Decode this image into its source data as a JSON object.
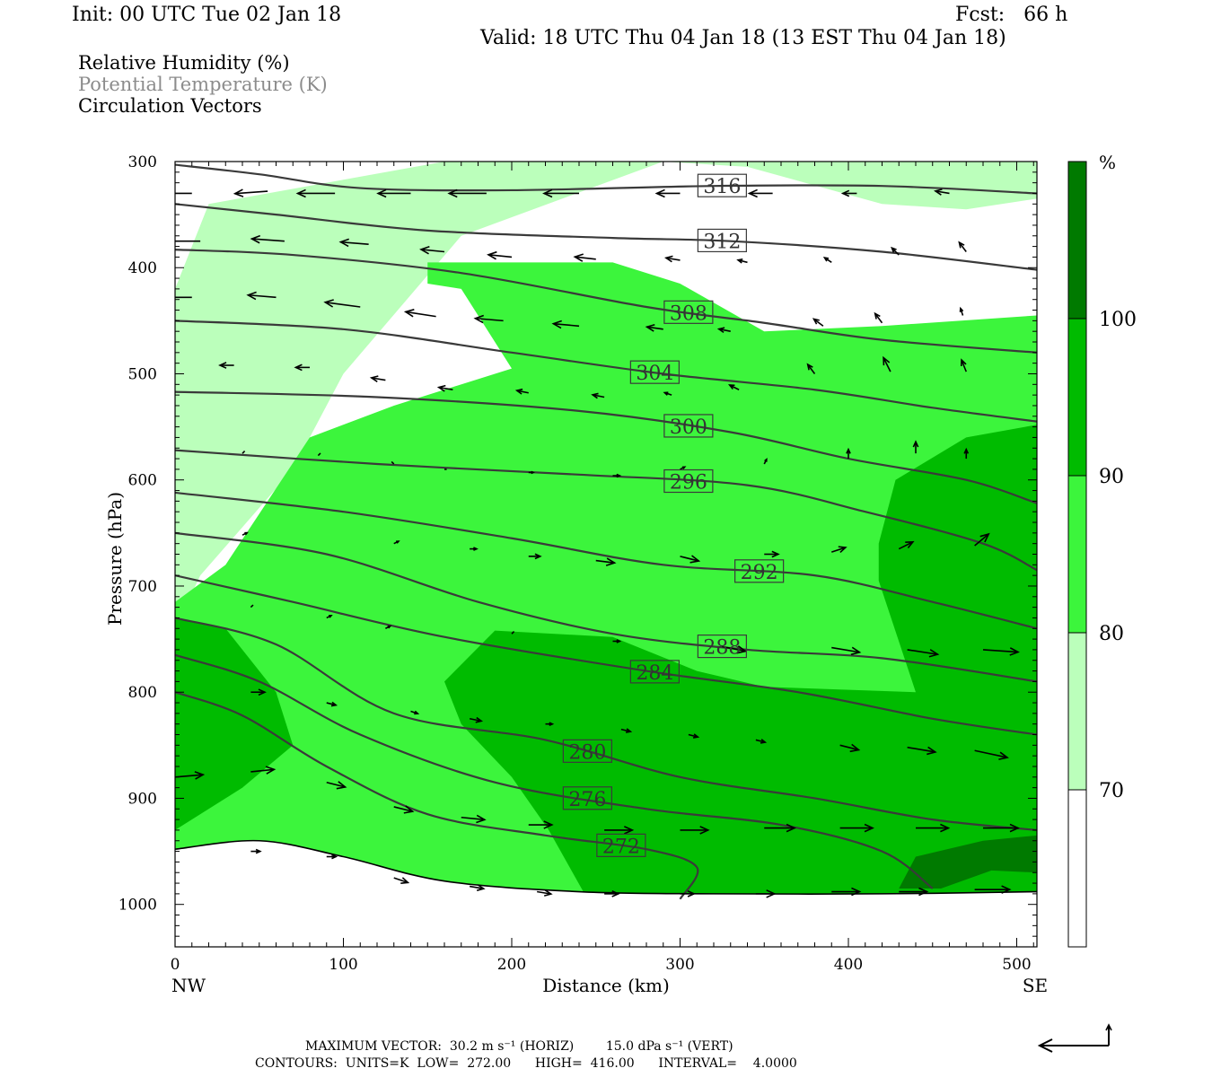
{
  "header": {
    "init": "Init: 00 UTC Tue 02 Jan 18",
    "fcst": "Fcst:   66 h",
    "valid": "Valid: 18 UTC Thu 04 Jan 18 (13 EST Thu 04 Jan 18)"
  },
  "legend": {
    "rh": "Relative Humidity (%)",
    "theta": "Potential Temperature (K)",
    "vectors": "Circulation Vectors"
  },
  "colors": {
    "rh_70_80": "#bbffbb",
    "rh_80_90": "#3cf53c",
    "rh_90_100": "#00bb00",
    "rh_100_plus": "#007a00",
    "theta_line": "#3a3a3a",
    "theta_label_text": "#333333"
  },
  "footer": {
    "line1": "MAXIMUM VECTOR:  30.2 m s⁻¹ (HORIZ)        15.0 dPa s⁻¹ (VERT)",
    "line2": "CONTOURS:  UNITS=K  LOW=  272.00      HIGH=  416.00      INTERVAL=    4.0000"
  },
  "chart_data": {
    "type": "cross-section",
    "xlabel": "Distance (km)",
    "ylabel": "Pressure (hPa)",
    "xlim": [
      0,
      512
    ],
    "ylim": [
      1040,
      300
    ],
    "x_ticks": [
      0,
      100,
      200,
      300,
      400,
      500
    ],
    "y_ticks": [
      300,
      400,
      500,
      600,
      700,
      800,
      900,
      1000
    ],
    "endpoint_left": "NW",
    "endpoint_right": "SE",
    "colorbar": {
      "unit": "%",
      "levels": [
        70,
        80,
        90,
        100
      ],
      "labels": [
        "70",
        "80",
        "90",
        "100"
      ],
      "colors": [
        "#ffffff",
        "#bbffbb",
        "#3cf53c",
        "#00bb00",
        "#007a00"
      ]
    },
    "rh_regions": [
      {
        "level": 70,
        "points": [
          [
            0,
            740
          ],
          [
            0,
            420
          ],
          [
            20,
            340
          ],
          [
            160,
            300
          ],
          [
            512,
            300
          ],
          [
            512,
            335
          ],
          [
            470,
            345
          ],
          [
            420,
            340
          ],
          [
            340,
            305
          ],
          [
            290,
            300
          ],
          [
            170,
            370
          ],
          [
            100,
            500
          ],
          [
            70,
            590
          ],
          [
            15,
            690
          ]
        ]
      },
      {
        "level": 80,
        "points": [
          [
            0,
            960
          ],
          [
            0,
            715
          ],
          [
            30,
            680
          ],
          [
            80,
            560
          ],
          [
            130,
            530
          ],
          [
            200,
            495
          ],
          [
            170,
            420
          ],
          [
            150,
            415
          ],
          [
            150,
            395
          ],
          [
            260,
            395
          ],
          [
            300,
            415
          ],
          [
            350,
            460
          ],
          [
            420,
            455
          ],
          [
            512,
            445
          ],
          [
            512,
            1010
          ],
          [
            400,
            1000
          ],
          [
            250,
            995
          ],
          [
            150,
            995
          ],
          [
            90,
            960
          ],
          [
            40,
            940
          ]
        ]
      },
      {
        "level": 90,
        "points": [
          [
            0,
            930
          ],
          [
            0,
            730
          ],
          [
            30,
            740
          ],
          [
            60,
            800
          ],
          [
            70,
            850
          ],
          [
            40,
            890
          ]
        ]
      },
      {
        "level": 90,
        "points": [
          [
            160,
            790
          ],
          [
            190,
            742
          ],
          [
            260,
            748
          ],
          [
            310,
            780
          ],
          [
            350,
            795
          ],
          [
            440,
            800
          ],
          [
            418,
            695
          ],
          [
            418,
            660
          ],
          [
            428,
            600
          ],
          [
            470,
            560
          ],
          [
            512,
            548
          ],
          [
            512,
            990
          ],
          [
            440,
            1000
          ],
          [
            350,
            995
          ],
          [
            245,
            995
          ],
          [
            222,
            930
          ],
          [
            200,
            880
          ],
          [
            170,
            830
          ]
        ]
      },
      {
        "level": 100,
        "points": [
          [
            430,
            985
          ],
          [
            440,
            955
          ],
          [
            480,
            940
          ],
          [
            512,
            935
          ],
          [
            512,
            970
          ],
          [
            485,
            968
          ],
          [
            455,
            985
          ]
        ]
      }
    ],
    "theta_contours": [
      {
        "label": "316",
        "points": [
          [
            0,
            303
          ],
          [
            50,
            312
          ],
          [
            110,
            325
          ],
          [
            200,
            327
          ],
          [
            320,
            323
          ],
          [
            420,
            323
          ],
          [
            512,
            330
          ]
        ]
      },
      {
        "label": "312",
        "points": [
          [
            0,
            340
          ],
          [
            60,
            350
          ],
          [
            150,
            365
          ],
          [
            260,
            372
          ],
          [
            330,
            375
          ],
          [
            420,
            385
          ],
          [
            512,
            402
          ]
        ]
      },
      {
        "label": "308",
        "points": [
          [
            0,
            383
          ],
          [
            70,
            388
          ],
          [
            170,
            405
          ],
          [
            280,
            437
          ],
          [
            350,
            452
          ],
          [
            420,
            468
          ],
          [
            512,
            480
          ]
        ]
      },
      {
        "label": "304",
        "points": [
          [
            0,
            450
          ],
          [
            100,
            458
          ],
          [
            200,
            480
          ],
          [
            290,
            500
          ],
          [
            380,
            515
          ],
          [
            450,
            532
          ],
          [
            512,
            545
          ]
        ]
      },
      {
        "label": "300",
        "points": [
          [
            0,
            517
          ],
          [
            120,
            522
          ],
          [
            240,
            535
          ],
          [
            330,
            555
          ],
          [
            400,
            580
          ],
          [
            470,
            600
          ],
          [
            512,
            622
          ]
        ]
      },
      {
        "label": "296",
        "points": [
          [
            0,
            572
          ],
          [
            120,
            585
          ],
          [
            240,
            595
          ],
          [
            340,
            605
          ],
          [
            410,
            630
          ],
          [
            480,
            660
          ],
          [
            512,
            685
          ]
        ]
      },
      {
        "label": "292",
        "points": [
          [
            0,
            612
          ],
          [
            100,
            630
          ],
          [
            200,
            655
          ],
          [
            290,
            680
          ],
          [
            380,
            690
          ],
          [
            450,
            715
          ],
          [
            512,
            740
          ]
        ]
      },
      {
        "label": "288",
        "points": [
          [
            0,
            650
          ],
          [
            90,
            670
          ],
          [
            180,
            715
          ],
          [
            260,
            745
          ],
          [
            340,
            760
          ],
          [
            420,
            768
          ],
          [
            512,
            790
          ]
        ]
      },
      {
        "label": "284",
        "points": [
          [
            0,
            690
          ],
          [
            70,
            715
          ],
          [
            160,
            748
          ],
          [
            280,
            780
          ],
          [
            370,
            800
          ],
          [
            450,
            825
          ],
          [
            512,
            840
          ]
        ]
      },
      {
        "label": "280",
        "points": [
          [
            0,
            730
          ],
          [
            60,
            755
          ],
          [
            130,
            820
          ],
          [
            220,
            845
          ],
          [
            300,
            880
          ],
          [
            380,
            900
          ],
          [
            450,
            920
          ],
          [
            512,
            930
          ]
        ]
      },
      {
        "label": "276",
        "points": [
          [
            0,
            765
          ],
          [
            50,
            790
          ],
          [
            110,
            840
          ],
          [
            190,
            885
          ],
          [
            280,
            910
          ],
          [
            360,
            925
          ],
          [
            420,
            950
          ],
          [
            450,
            985
          ]
        ]
      },
      {
        "label": "272",
        "points": [
          [
            0,
            800
          ],
          [
            40,
            822
          ],
          [
            90,
            870
          ],
          [
            150,
            915
          ],
          [
            220,
            935
          ],
          [
            280,
            948
          ],
          [
            310,
            965
          ],
          [
            300,
            995
          ]
        ]
      },
      {
        "label": "",
        "points": [
          [
            0,
            948
          ],
          [
            50,
            940
          ],
          [
            100,
            955
          ],
          [
            160,
            978
          ],
          [
            240,
            988
          ],
          [
            320,
            990
          ],
          [
            420,
            990
          ],
          [
            512,
            988
          ]
        ]
      }
    ],
    "wind_vectors": [
      [
        10,
        330,
        -15,
        0
      ],
      [
        55,
        328,
        -14,
        1
      ],
      [
        95,
        330,
        -16,
        0
      ],
      [
        140,
        330,
        -14,
        0
      ],
      [
        185,
        330,
        -16,
        0
      ],
      [
        240,
        330,
        -15,
        0
      ],
      [
        300,
        330,
        -10,
        0
      ],
      [
        355,
        330,
        -10,
        0
      ],
      [
        405,
        330,
        -6,
        0
      ],
      [
        460,
        330,
        -6,
        -1
      ],
      [
        15,
        375,
        -16,
        0
      ],
      [
        65,
        375,
        -14,
        -1
      ],
      [
        115,
        378,
        -12,
        -1
      ],
      [
        160,
        385,
        -10,
        -1
      ],
      [
        200,
        390,
        -10,
        -1
      ],
      [
        250,
        392,
        -9,
        -1
      ],
      [
        300,
        393,
        -6,
        -1
      ],
      [
        340,
        395,
        -4,
        -1
      ],
      [
        390,
        395,
        -3,
        -2
      ],
      [
        430,
        388,
        -3,
        -3
      ],
      [
        470,
        385,
        -3,
        -4
      ],
      [
        10,
        428,
        -14,
        0
      ],
      [
        60,
        428,
        -12,
        -1
      ],
      [
        110,
        437,
        -15,
        -2
      ],
      [
        155,
        446,
        -13,
        -2
      ],
      [
        195,
        450,
        -12,
        -1
      ],
      [
        240,
        455,
        -11,
        -1
      ],
      [
        290,
        458,
        -7,
        -1
      ],
      [
        330,
        460,
        -5,
        -1
      ],
      [
        385,
        455,
        -4,
        -3
      ],
      [
        420,
        452,
        -3,
        -4
      ],
      [
        468,
        445,
        -1,
        -3
      ],
      [
        35,
        492,
        -6,
        0
      ],
      [
        80,
        494,
        -6,
        0
      ],
      [
        125,
        506,
        -6,
        -1
      ],
      [
        165,
        515,
        -6,
        -1
      ],
      [
        210,
        518,
        -5,
        -1
      ],
      [
        255,
        522,
        -5,
        -1
      ],
      [
        295,
        520,
        -3,
        -1
      ],
      [
        335,
        515,
        -4,
        -2
      ],
      [
        380,
        500,
        -3,
        -4
      ],
      [
        425,
        498,
        -3,
        -6
      ],
      [
        470,
        498,
        -2,
        -5
      ],
      [
        40,
        575,
        1,
        -1
      ],
      [
        85,
        577,
        1,
        -1
      ],
      [
        130,
        585,
        -1,
        -1
      ],
      [
        160,
        590,
        1,
        0
      ],
      [
        210,
        593,
        2,
        0
      ],
      [
        260,
        596,
        3,
        0
      ],
      [
        300,
        590,
        2,
        -1
      ],
      [
        350,
        585,
        1,
        -2
      ],
      [
        400,
        580,
        0,
        -4
      ],
      [
        440,
        575,
        0,
        -5
      ],
      [
        470,
        580,
        0,
        -4
      ],
      [
        40,
        652,
        2,
        -1
      ],
      [
        130,
        660,
        2,
        -1
      ],
      [
        175,
        665,
        3,
        0
      ],
      [
        210,
        672,
        5,
        0
      ],
      [
        250,
        676,
        8,
        1
      ],
      [
        300,
        672,
        8,
        2
      ],
      [
        350,
        670,
        6,
        0
      ],
      [
        390,
        668,
        6,
        -2
      ],
      [
        430,
        665,
        6,
        -3
      ],
      [
        475,
        662,
        6,
        -5
      ],
      [
        45,
        720,
        1,
        -1
      ],
      [
        90,
        730,
        2,
        -1
      ],
      [
        125,
        740,
        2,
        -1
      ],
      [
        200,
        745,
        1,
        -1
      ],
      [
        260,
        752,
        3,
        0
      ],
      [
        325,
        757,
        10,
        2
      ],
      [
        390,
        758,
        12,
        2
      ],
      [
        435,
        760,
        13,
        2
      ],
      [
        480,
        760,
        15,
        1
      ],
      [
        45,
        800,
        6,
        0
      ],
      [
        90,
        810,
        4,
        1
      ],
      [
        140,
        818,
        3,
        1
      ],
      [
        175,
        825,
        5,
        1
      ],
      [
        220,
        830,
        3,
        0
      ],
      [
        265,
        835,
        4,
        1
      ],
      [
        305,
        840,
        4,
        1
      ],
      [
        345,
        845,
        4,
        1
      ],
      [
        395,
        850,
        8,
        2
      ],
      [
        435,
        852,
        12,
        2
      ],
      [
        475,
        855,
        14,
        3
      ],
      [
        0,
        880,
        12,
        -1
      ],
      [
        45,
        875,
        10,
        -1
      ],
      [
        90,
        885,
        8,
        2
      ],
      [
        130,
        908,
        8,
        2
      ],
      [
        170,
        918,
        10,
        1
      ],
      [
        210,
        925,
        10,
        0
      ],
      [
        255,
        930,
        12,
        0
      ],
      [
        300,
        930,
        12,
        0
      ],
      [
        350,
        928,
        13,
        0
      ],
      [
        395,
        928,
        14,
        0
      ],
      [
        440,
        928,
        14,
        0
      ],
      [
        480,
        928,
        15,
        0
      ],
      [
        0,
        952,
        -1,
        0
      ],
      [
        45,
        950,
        4,
        0
      ],
      [
        90,
        955,
        4,
        0
      ],
      [
        130,
        975,
        6,
        2
      ],
      [
        175,
        983,
        6,
        1
      ],
      [
        215,
        988,
        6,
        1
      ],
      [
        255,
        990,
        6,
        0
      ],
      [
        300,
        990,
        6,
        0
      ],
      [
        345,
        990,
        8,
        0
      ],
      [
        390,
        988,
        12,
        0
      ],
      [
        430,
        988,
        12,
        0
      ],
      [
        475,
        986,
        15,
        0
      ]
    ]
  }
}
